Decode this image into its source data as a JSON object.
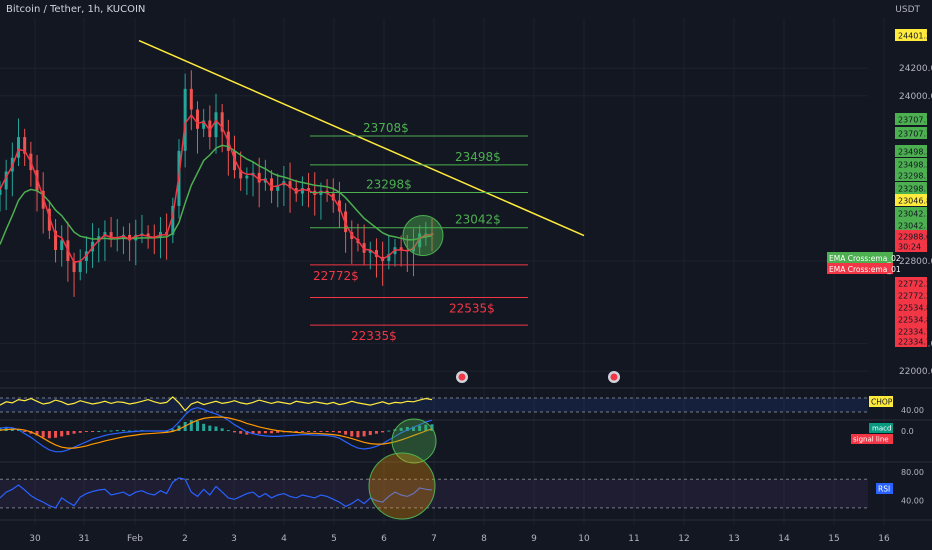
{
  "header": {
    "title": "Bitcoin / Tether, 1h, KUCOIN",
    "currency": "USDT"
  },
  "colors": {
    "background": "#131722",
    "up": "#26a69a",
    "down": "#ef5350",
    "ema_fast": "#f23645",
    "ema_slow": "#4caf50",
    "trendline": "#ffeb3b",
    "support": "#f23645",
    "resistance": "#4caf50",
    "chop": "#ffeb3b",
    "rsi": "#2962ff",
    "axis_text": "#b2b5be"
  },
  "chart_data": [
    {
      "type": "candlestick",
      "title": "Bitcoin / Tether, 1h, KUCOIN",
      "x_ticks": [
        "30",
        "31",
        "Feb",
        "2",
        "3",
        "4",
        "5",
        "6",
        "7",
        "8",
        "9",
        "10",
        "11",
        "12",
        "13",
        "14",
        "15",
        "16"
      ],
      "y_ticks": [
        24200.0,
        24000.0,
        22800.0,
        22200.0,
        22000.0
      ],
      "ylim": [
        21900,
        24550
      ],
      "price_labels": [
        {
          "value": "24401.2",
          "color": "#ffeb3b"
        },
        {
          "value": "23707.7",
          "color": "#4caf50"
        },
        {
          "value": "23707.7",
          "color": "#4caf50"
        },
        {
          "value": "23498.3",
          "color": "#4caf50"
        },
        {
          "value": "23498.3",
          "color": "#4caf50"
        },
        {
          "value": "23298.1",
          "color": "#4caf50"
        },
        {
          "value": "23298.1",
          "color": "#4caf50"
        },
        {
          "value": "23046.8",
          "color": "#ffeb3b"
        },
        {
          "value": "23042.1",
          "color": "#4caf50"
        },
        {
          "value": "23042.1",
          "color": "#4caf50"
        },
        {
          "value": "22988.0",
          "color": "#f23645"
        },
        {
          "value": "30:24",
          "color": "#f23645"
        },
        {
          "value": "22772.2",
          "color": "#f23645"
        },
        {
          "value": "22772.2",
          "color": "#f23645"
        },
        {
          "value": "22534.8",
          "color": "#f23645"
        },
        {
          "value": "22534.8",
          "color": "#f23645"
        },
        {
          "value": "22334.7",
          "color": "#f23645"
        },
        {
          "value": "22334.7",
          "color": "#f23645"
        }
      ],
      "levels": [
        {
          "label": "23708$",
          "value": 23708,
          "kind": "resistance"
        },
        {
          "label": "23498$",
          "value": 23498,
          "kind": "resistance"
        },
        {
          "label": "23298$",
          "value": 23298,
          "kind": "resistance"
        },
        {
          "label": "23042$",
          "value": 23042,
          "kind": "resistance"
        },
        {
          "label": "22772$",
          "value": 22772,
          "kind": "support"
        },
        {
          "label": "22535$",
          "value": 22535,
          "kind": "support"
        },
        {
          "label": "22335$",
          "value": 22335,
          "kind": "support"
        }
      ],
      "legend": [
        "EMA Cross:ema_02",
        "EMA Cross:ema_01"
      ],
      "trendline": {
        "from": {
          "x": "31",
          "y": 24401
        },
        "to": {
          "x": "6",
          "y": 22985
        }
      },
      "current_price": 22988.0,
      "closes": [
        23320,
        23450,
        23550,
        23700,
        23580,
        23460,
        23310,
        23180,
        23020,
        22880,
        22950,
        22800,
        22720,
        22800,
        22870,
        22940,
        22980,
        23010,
        22960,
        22970,
        22990,
        22950,
        22990,
        23000,
        22980,
        22970,
        23010,
        22990,
        23200,
        23600,
        24050,
        23900,
        23760,
        23820,
        23700,
        23880,
        23740,
        23600,
        23460,
        23400,
        23420,
        23440,
        23370,
        23400,
        23310,
        23350,
        23380,
        23330,
        23290,
        23330,
        23310,
        23280,
        23310,
        23290,
        23240,
        23160,
        23010,
        22960,
        22930,
        22860,
        22880,
        22830,
        22800,
        22850,
        22900,
        22880,
        22870,
        22900,
        23000,
        23000,
        22990
      ],
      "ema_fast": [
        23320,
        23410,
        23490,
        23610,
        23600,
        23520,
        23400,
        23260,
        23120,
        22990,
        22970,
        22880,
        22790,
        22800,
        22840,
        22900,
        22950,
        22990,
        22970,
        22970,
        22980,
        22960,
        22980,
        22990,
        22980,
        22970,
        22990,
        22990,
        23130,
        23420,
        23800,
        23860,
        23800,
        23810,
        23750,
        23820,
        23770,
        23670,
        23540,
        23450,
        23430,
        23430,
        23390,
        23390,
        23340,
        23345,
        23365,
        23340,
        23305,
        23320,
        23312,
        23290,
        23302,
        23295,
        23260,
        23190,
        23070,
        22990,
        22950,
        22885,
        22880,
        22845,
        22815,
        22840,
        22880,
        22880,
        22875,
        22890,
        22965,
        22990,
        22990
      ],
      "ema_slow": [
        22920,
        23030,
        23130,
        23240,
        23300,
        23320,
        23310,
        23280,
        23230,
        23170,
        23130,
        23070,
        23010,
        22980,
        22970,
        22960,
        22960,
        22965,
        22960,
        22962,
        22965,
        22962,
        22965,
        22968,
        22968,
        22968,
        22972,
        22975,
        23000,
        23080,
        23220,
        23350,
        23440,
        23530,
        23570,
        23620,
        23640,
        23630,
        23600,
        23570,
        23540,
        23520,
        23490,
        23470,
        23440,
        23420,
        23410,
        23395,
        23380,
        23370,
        23360,
        23350,
        23345,
        23338,
        23325,
        23300,
        23260,
        23210,
        23160,
        23110,
        23075,
        23040,
        23005,
        22985,
        22975,
        22965,
        22955,
        22955,
        22965,
        22975,
        22985
      ]
    },
    {
      "type": "line",
      "title": "CHOP",
      "y_ticks": [
        "40.00"
      ],
      "values": [
        48,
        54,
        52,
        58,
        56,
        60,
        55,
        50,
        52,
        57,
        54,
        49,
        51,
        56,
        53,
        50,
        52,
        55,
        51,
        54,
        53,
        50,
        52,
        55,
        58,
        54,
        51,
        53,
        63,
        52,
        38,
        50,
        54,
        49,
        52,
        55,
        51,
        53,
        56,
        52,
        50,
        53,
        57,
        54,
        51,
        54,
        52,
        50,
        55,
        53,
        51,
        54,
        52,
        50,
        53,
        49,
        51,
        55,
        52,
        50,
        48,
        51,
        54,
        50,
        53,
        52,
        55,
        54,
        57,
        60,
        58
      ]
    },
    {
      "type": "bar",
      "title": "MACD",
      "y_ticks": [
        "0.0"
      ],
      "legend": [
        "macd",
        "signal line"
      ],
      "hist": [
        8,
        9,
        6,
        3,
        -2,
        -6,
        -10,
        -14,
        -16,
        -15,
        -12,
        -9,
        -6,
        -4,
        -2,
        -1,
        0,
        1,
        1,
        2,
        2,
        1,
        1,
        2,
        1,
        1,
        1,
        0,
        4,
        12,
        20,
        24,
        22,
        16,
        12,
        10,
        6,
        2,
        -3,
        -6,
        -8,
        -7,
        -6,
        -5,
        -5,
        -4,
        -3,
        -2,
        -2,
        -1,
        -1,
        -2,
        -1,
        -1,
        -2,
        -4,
        -8,
        -12,
        -14,
        -12,
        -9,
        -6,
        -3,
        1,
        4,
        7,
        9,
        10,
        12,
        14,
        15
      ],
      "macd": [
        6,
        8,
        7,
        3,
        -6,
        -14,
        -24,
        -34,
        -42,
        -46,
        -46,
        -42,
        -36,
        -30,
        -24,
        -18,
        -14,
        -10,
        -7,
        -5,
        -3,
        -2,
        -1,
        0,
        0,
        0,
        0,
        0,
        6,
        20,
        36,
        48,
        52,
        48,
        42,
        38,
        32,
        24,
        14,
        6,
        -2,
        -6,
        -9,
        -11,
        -12,
        -12,
        -11,
        -10,
        -9,
        -8,
        -8,
        -9,
        -9,
        -10,
        -12,
        -16,
        -24,
        -32,
        -38,
        -40,
        -38,
        -34,
        -28,
        -20,
        -12,
        -4,
        2,
        8,
        14,
        20,
        24
      ],
      "signal": [
        2,
        3,
        4,
        4,
        2,
        -2,
        -8,
        -16,
        -24,
        -31,
        -36,
        -38,
        -38,
        -36,
        -33,
        -29,
        -26,
        -22,
        -19,
        -16,
        -13,
        -11,
        -9,
        -7,
        -6,
        -5,
        -4,
        -3,
        -1,
        4,
        11,
        18,
        24,
        28,
        30,
        31,
        31,
        29,
        26,
        22,
        17,
        13,
        9,
        6,
        3,
        1,
        -1,
        -2,
        -3,
        -4,
        -5,
        -5,
        -6,
        -7,
        -8,
        -10,
        -13,
        -17,
        -21,
        -25,
        -28,
        -29,
        -29,
        -27,
        -24,
        -20,
        -15,
        -10,
        -5,
        0,
        5
      ]
    },
    {
      "type": "line",
      "title": "RSI",
      "y_ticks": [
        "80.00",
        "40.00"
      ],
      "ylim": [
        20,
        90
      ],
      "values": [
        44,
        52,
        56,
        62,
        55,
        47,
        42,
        38,
        33,
        30,
        44,
        38,
        33,
        45,
        50,
        53,
        55,
        56,
        48,
        50,
        52,
        47,
        52,
        54,
        50,
        48,
        54,
        50,
        66,
        72,
        70,
        52,
        46,
        56,
        48,
        60,
        52,
        44,
        42,
        46,
        50,
        52,
        45,
        50,
        44,
        48,
        50,
        46,
        44,
        48,
        46,
        44,
        48,
        46,
        42,
        38,
        32,
        36,
        42,
        36,
        44,
        40,
        38,
        46,
        52,
        48,
        46,
        50,
        58,
        56,
        55
      ]
    }
  ]
}
